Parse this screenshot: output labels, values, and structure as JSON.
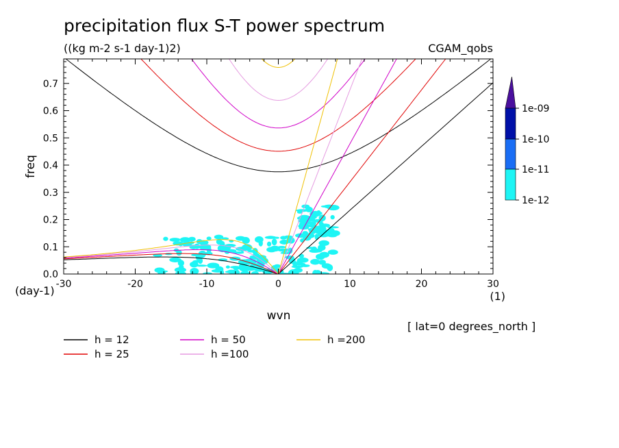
{
  "chart_data": {
    "type": "heatmap",
    "title": "precipitation flux S-T power spectrum",
    "subtitle": "((kg m-2 s-1 day-1)2)",
    "dataset": "CGAM_qobs",
    "annotation": "[ lat=0 degrees_north ]",
    "xlabel": "wvn",
    "ylabel": "freq",
    "x_units": "(1)",
    "y_units": "(day-1)",
    "xlim": [
      -30,
      30
    ],
    "ylim": [
      0,
      0.79
    ],
    "xticks": [
      "-30",
      "-20",
      "-10",
      "0",
      "10",
      "20",
      "30"
    ],
    "yticks": [
      "0.0",
      "0.1",
      "0.2",
      "0.3",
      "0.4",
      "0.5",
      "0.6",
      "0.7"
    ],
    "colorbar": {
      "labels": [
        "1e-09",
        "1e-10",
        "1e-11",
        "1e-12"
      ],
      "colors": [
        "#4a0f9e",
        "#0010a8",
        "#1a6ef5",
        "#1ef5f5"
      ]
    },
    "dispersion_curves": [
      {
        "name": "h = 12",
        "h": 12,
        "color": "#000000"
      },
      {
        "name": "h = 25",
        "h": 25,
        "color": "#e00000"
      },
      {
        "name": "h = 50",
        "h": 50,
        "color": "#d000c8"
      },
      {
        "name": "h =100",
        "h": 100,
        "color": "#e59ae0"
      },
      {
        "name": "h =200",
        "h": 200,
        "color": "#f0c000"
      }
    ],
    "power_regions": [
      {
        "x": [
          -17,
          8
        ],
        "y": [
          0.0,
          0.14
        ],
        "level": "1e-12"
      },
      {
        "x": [
          3,
          8
        ],
        "y": [
          0.14,
          0.25
        ],
        "level": "1e-12"
      }
    ]
  }
}
